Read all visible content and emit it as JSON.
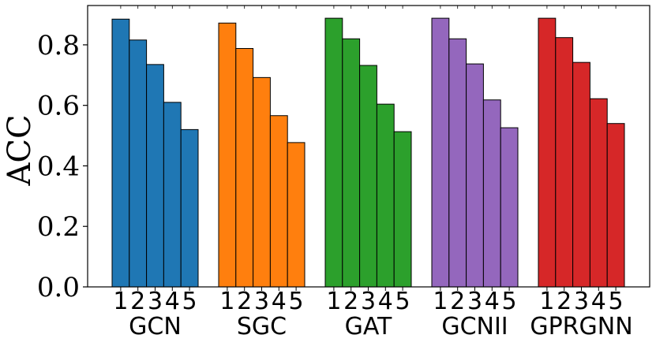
{
  "chart_data": {
    "type": "bar",
    "title": "",
    "xlabel": "",
    "ylabel": "ACC",
    "ylim": [
      0,
      0.93
    ],
    "yticks": [
      0.0,
      0.2,
      0.4,
      0.6,
      0.8
    ],
    "ytick_labels": [
      "0.0",
      "0.2",
      "0.4",
      "0.6",
      "0.8"
    ],
    "sub_categories": [
      "1",
      "2",
      "3",
      "4",
      "5"
    ],
    "groups": [
      {
        "name": "GCN",
        "color": "#1f77b4",
        "values": [
          0.885,
          0.816,
          0.735,
          0.61,
          0.52
        ]
      },
      {
        "name": "SGC",
        "color": "#ff7f0e",
        "values": [
          0.872,
          0.788,
          0.692,
          0.566,
          0.477
        ]
      },
      {
        "name": "GAT",
        "color": "#2ca02c",
        "values": [
          0.888,
          0.82,
          0.732,
          0.604,
          0.513
        ]
      },
      {
        "name": "GCNII",
        "color": "#9467bd",
        "values": [
          0.888,
          0.82,
          0.737,
          0.618,
          0.526
        ]
      },
      {
        "name": "GPRGNN",
        "color": "#d62728",
        "values": [
          0.888,
          0.824,
          0.742,
          0.622,
          0.54
        ]
      }
    ]
  }
}
